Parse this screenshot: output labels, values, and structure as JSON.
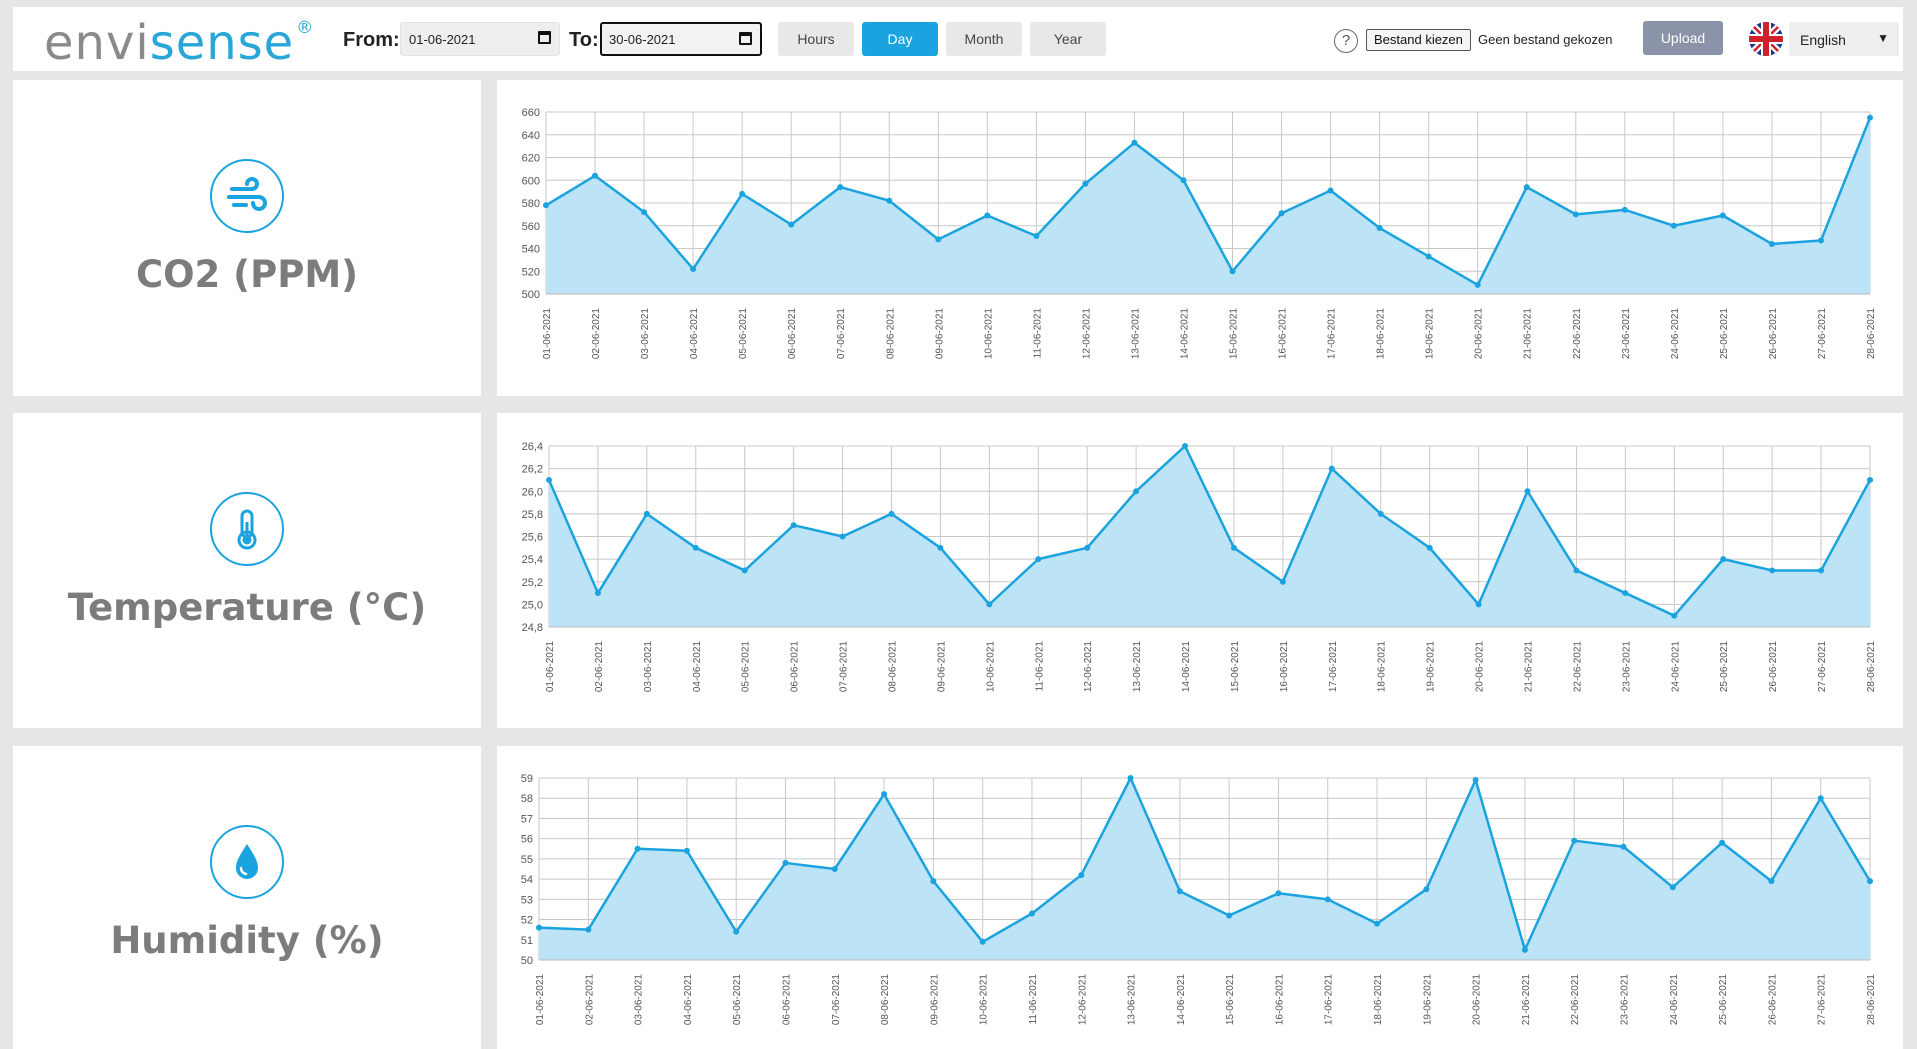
{
  "header": {
    "logo_part1": "envi",
    "logo_part2": "sense",
    "logo_mark": "®",
    "from_label": "From:",
    "from_value": "01-06-2021",
    "to_label": "To:",
    "to_value": "30-06-2021",
    "range_buttons": [
      "Hours",
      "Day",
      "Month",
      "Year"
    ],
    "active_range": "Day",
    "help_symbol": "?",
    "file_button": "Bestand kiezen",
    "file_status": "Geen bestand gekozen",
    "upload_label": "Upload",
    "language": "English",
    "accent_color": "#1aa3df"
  },
  "panels": [
    {
      "title": "CO2 (PPM)",
      "icon": "wind-icon"
    },
    {
      "title": "Temperature (°C)",
      "icon": "thermometer-icon"
    },
    {
      "title": "Humidity (%)",
      "icon": "water-drop-icon"
    }
  ],
  "chart_data": [
    {
      "type": "area",
      "x": [
        "01-06-2021",
        "02-06-2021",
        "03-06-2021",
        "04-06-2021",
        "05-06-2021",
        "06-06-2021",
        "07-06-2021",
        "08-06-2021",
        "09-06-2021",
        "10-06-2021",
        "11-06-2021",
        "12-06-2021",
        "13-06-2021",
        "14-06-2021",
        "15-06-2021",
        "16-06-2021",
        "17-06-2021",
        "18-06-2021",
        "19-06-2021",
        "20-06-2021",
        "21-06-2021",
        "22-06-2021",
        "23-06-2021",
        "24-06-2021",
        "25-06-2021",
        "26-06-2021",
        "27-06-2021",
        "28-06-2021"
      ],
      "values": [
        578,
        604,
        572,
        522,
        588,
        561,
        594,
        582,
        548,
        569,
        551,
        597,
        633,
        600,
        520,
        571,
        591,
        558,
        533,
        508,
        594,
        570,
        574,
        560,
        569,
        544,
        547,
        655
      ],
      "yticks": [
        "500",
        "520",
        "540",
        "560",
        "580",
        "600",
        "620",
        "640",
        "660"
      ],
      "ylim": [
        500,
        660
      ],
      "grid": true
    },
    {
      "type": "area",
      "x": [
        "01-06-2021",
        "02-06-2021",
        "03-06-2021",
        "04-06-2021",
        "05-06-2021",
        "06-06-2021",
        "07-06-2021",
        "08-06-2021",
        "09-06-2021",
        "10-06-2021",
        "11-06-2021",
        "12-06-2021",
        "13-06-2021",
        "14-06-2021",
        "15-06-2021",
        "16-06-2021",
        "17-06-2021",
        "18-06-2021",
        "19-06-2021",
        "20-06-2021",
        "21-06-2021",
        "22-06-2021",
        "23-06-2021",
        "24-06-2021",
        "25-06-2021",
        "26-06-2021",
        "27-06-2021",
        "28-06-2021"
      ],
      "values": [
        26.1,
        25.1,
        25.8,
        25.5,
        25.3,
        25.7,
        25.6,
        25.8,
        25.5,
        25.0,
        25.4,
        25.5,
        26.0,
        26.4,
        25.5,
        25.2,
        26.2,
        25.8,
        25.5,
        25.0,
        26.0,
        25.3,
        25.1,
        24.9,
        25.4,
        25.3,
        25.3,
        26.1
      ],
      "yticks": [
        "24,8",
        "25,0",
        "25,2",
        "25,4",
        "25,6",
        "25,8",
        "26,0",
        "26,2",
        "26,4"
      ],
      "ylim": [
        24.8,
        26.4
      ],
      "grid": true
    },
    {
      "type": "area",
      "x": [
        "01-06-2021",
        "02-06-2021",
        "03-06-2021",
        "04-06-2021",
        "05-06-2021",
        "06-06-2021",
        "07-06-2021",
        "08-06-2021",
        "09-06-2021",
        "10-06-2021",
        "11-06-2021",
        "12-06-2021",
        "13-06-2021",
        "14-06-2021",
        "15-06-2021",
        "16-06-2021",
        "17-06-2021",
        "18-06-2021",
        "19-06-2021",
        "20-06-2021",
        "21-06-2021",
        "22-06-2021",
        "23-06-2021",
        "24-06-2021",
        "25-06-2021",
        "26-06-2021",
        "27-06-2021",
        "28-06-2021"
      ],
      "values": [
        51.6,
        51.5,
        55.5,
        55.4,
        51.4,
        54.8,
        54.5,
        58.2,
        53.9,
        50.9,
        52.3,
        54.2,
        59.0,
        53.4,
        52.2,
        53.3,
        53.0,
        51.8,
        53.5,
        58.9,
        50.5,
        55.9,
        55.6,
        53.6,
        55.8,
        53.9,
        58.0,
        53.9
      ],
      "yticks": [
        "50",
        "51",
        "52",
        "53",
        "54",
        "55",
        "56",
        "57",
        "58",
        "59"
      ],
      "ylim": [
        50,
        59
      ],
      "grid": true,
      "series_color": "#1aa3df",
      "fill_color": "#bde3f7"
    }
  ]
}
